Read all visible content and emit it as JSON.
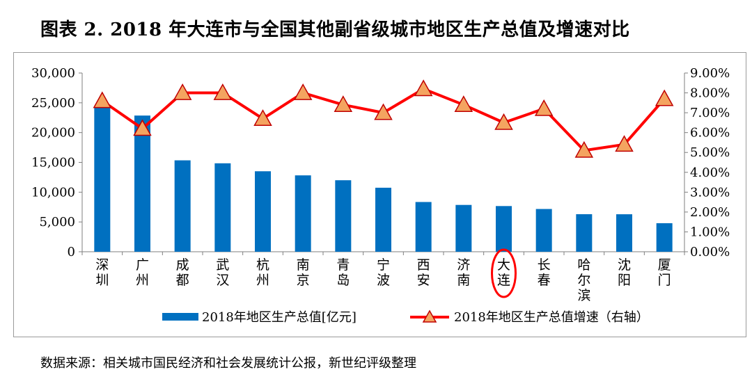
{
  "title": "图表 2. 2018 年大连市与全国其他副省级城市地区生产总值及增速对比",
  "source": "数据来源：相关城市国民经济和社会发展统计公报，新世纪评级整理",
  "colors": {
    "bar": "#0070c0",
    "line": "#ff0000",
    "marker_fill": "#f4a460",
    "marker_stroke": "#c00000",
    "highlight": "#ff0000"
  },
  "chart_data": {
    "type": "bar",
    "categories": [
      "深圳",
      "广州",
      "成都",
      "武汉",
      "杭州",
      "南京",
      "青岛",
      "宁波",
      "西安",
      "济南",
      "大连",
      "长春",
      "哈尔滨",
      "沈阳",
      "厦门"
    ],
    "highlight_category": "大连",
    "series": [
      {
        "name": "2018年地区生产总值[亿元]",
        "type": "bar",
        "axis": "left",
        "values": [
          24222,
          22859,
          15343,
          14847,
          13509,
          12820,
          12002,
          10746,
          8350,
          7857,
          7668,
          7176,
          6301,
          6292,
          4791
        ]
      },
      {
        "name": "2018年地区生产总值增速（右轴）",
        "type": "line",
        "axis": "right",
        "marker": "triangle",
        "values": [
          7.6,
          6.2,
          8.0,
          8.0,
          6.7,
          8.0,
          7.4,
          7.0,
          8.2,
          7.4,
          6.5,
          7.2,
          5.1,
          5.4,
          7.7
        ]
      }
    ],
    "y_left": {
      "ylim": [
        0,
        30000
      ],
      "ticks": [
        "0",
        "5,000",
        "10,000",
        "15,000",
        "20,000",
        "25,000",
        "30,000"
      ]
    },
    "y_right": {
      "ylim": [
        0,
        9
      ],
      "ticks": [
        "0.00%",
        "1.00%",
        "2.00%",
        "3.00%",
        "4.00%",
        "5.00%",
        "6.00%",
        "7.00%",
        "8.00%",
        "9.00%"
      ]
    },
    "grid": false,
    "legend_position": "bottom"
  }
}
